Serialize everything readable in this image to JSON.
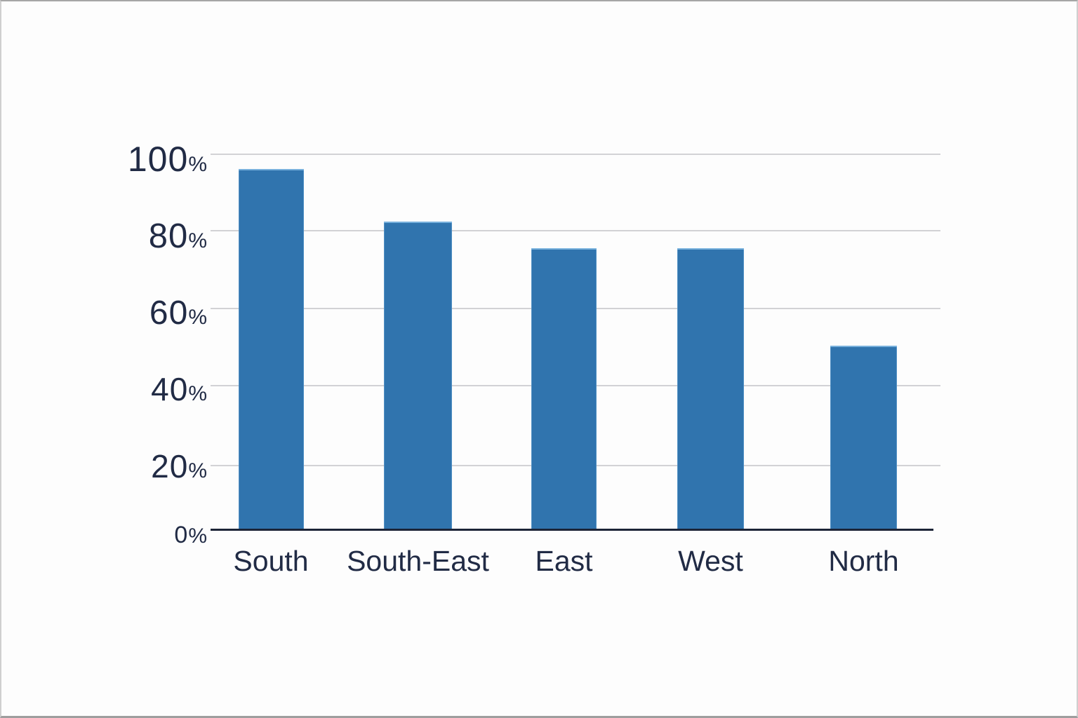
{
  "chart_data": {
    "type": "bar",
    "categories": [
      "South",
      "South-East",
      "East",
      "West",
      "North"
    ],
    "values": [
      96,
      82,
      75,
      75,
      49
    ],
    "title": "",
    "xlabel": "",
    "ylabel": "",
    "ylim": [
      0,
      100
    ],
    "yticks": [
      100,
      80,
      60,
      40,
      20,
      0
    ],
    "ytick_suffix": "%",
    "grid": true,
    "legend": false,
    "colors": {
      "bar": "#3074ae",
      "bar_edge_highlight": "#85bce5",
      "grid": "#d2d2d5",
      "axis": "#1c2437",
      "text": "#212b45",
      "background": "#fdfdfd"
    }
  }
}
